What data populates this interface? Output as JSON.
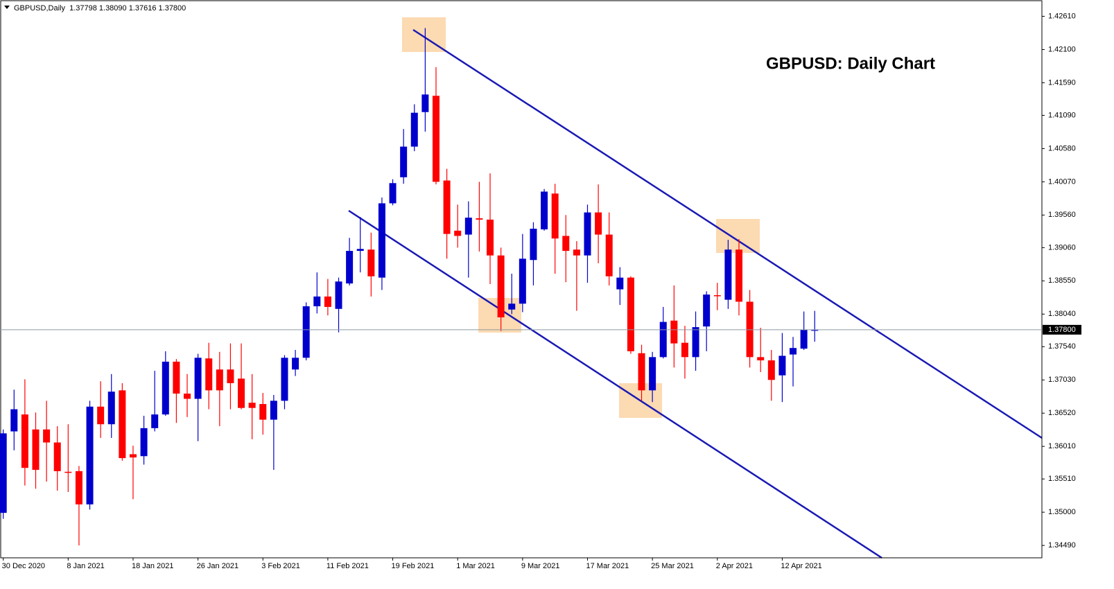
{
  "chart_data": {
    "type": "candlestick",
    "title": "GBPUSD: Daily Chart",
    "info": "GBPUSD,Daily  1.37798 1.38090 1.37616 1.37800",
    "categories": [
      "30 Dec 2020",
      null,
      null,
      null,
      null,
      null,
      "8 Jan 2021",
      null,
      null,
      null,
      null,
      null,
      "18 Jan 2021",
      null,
      null,
      null,
      null,
      null,
      "26 Jan 2021",
      null,
      null,
      null,
      null,
      null,
      "3 Feb 2021",
      null,
      null,
      null,
      null,
      null,
      "11 Feb 2021",
      null,
      null,
      null,
      null,
      null,
      "19 Feb 2021",
      null,
      null,
      null,
      null,
      null,
      "1 Mar 2021",
      null,
      null,
      null,
      null,
      null,
      "9 Mar 2021",
      null,
      null,
      null,
      null,
      null,
      "17 Mar 2021",
      null,
      null,
      null,
      null,
      null,
      "25 Mar 2021",
      null,
      null,
      null,
      null,
      null,
      "2 Apr 2021",
      null,
      null,
      null,
      null,
      null,
      "12 Apr 2021",
      null,
      null,
      null
    ],
    "open": [
      1.3499,
      1.3624,
      1.365,
      1.3627,
      1.3627,
      1.3607,
      1.3562,
      1.3563,
      1.3512,
      1.3662,
      1.3635,
      1.3687,
      1.3589,
      1.3586,
      1.3629,
      1.365,
      1.3731,
      1.3682,
      1.3674,
      1.3736,
      1.3719,
      1.3719,
      1.3705,
      1.3668,
      1.3666,
      1.3642,
      1.3671,
      1.3719,
      1.3737,
      1.3816,
      1.3831,
      1.3812,
      1.3851,
      1.3901,
      1.3903,
      1.386,
      1.3974,
      1.4014,
      1.4061,
      1.4114,
      1.4139,
      1.4009,
      1.3932,
      1.3926,
      1.3951,
      1.3949,
      1.3894,
      1.3811,
      1.382,
      1.3887,
      1.3934,
      1.3989,
      1.3924,
      1.3903,
      1.3894,
      1.396,
      1.3926,
      1.3842,
      1.386,
      1.3744,
      1.3687,
      1.3738,
      1.3794,
      1.376,
      1.3738,
      1.3785,
      1.3833,
      1.3826,
      1.3903,
      1.3823,
      1.3738,
      1.3733,
      1.371,
      1.3742,
      1.3751,
      1.37798
    ],
    "high": [
      1.3627,
      1.3688,
      1.3704,
      1.3653,
      1.3671,
      1.3632,
      1.3635,
      1.3571,
      1.3671,
      1.3701,
      1.3712,
      1.3698,
      1.3602,
      1.3648,
      1.3717,
      1.3747,
      1.3735,
      1.3712,
      1.3743,
      1.376,
      1.3746,
      1.3759,
      1.3759,
      1.3712,
      1.3683,
      1.368,
      1.3741,
      1.3749,
      1.3822,
      1.3868,
      1.3858,
      1.386,
      1.3921,
      1.3953,
      1.3929,
      1.3983,
      1.4011,
      1.4088,
      1.4126,
      1.4243,
      1.4183,
      1.4027,
      1.3972,
      1.3977,
      1.4007,
      1.402,
      1.3906,
      1.3866,
      1.3927,
      1.3945,
      1.3996,
      1.4004,
      1.3956,
      1.3916,
      1.3972,
      1.4003,
      1.396,
      1.3876,
      1.3862,
      1.3757,
      1.3746,
      1.3815,
      1.3848,
      1.3786,
      1.3808,
      1.3839,
      1.3852,
      1.3918,
      1.3919,
      1.3841,
      1.3783,
      1.3749,
      1.3775,
      1.3769,
      1.3808,
      1.3809
    ],
    "low": [
      1.349,
      1.3595,
      1.3541,
      1.3536,
      1.3547,
      1.3533,
      1.3531,
      1.3449,
      1.3504,
      1.3614,
      1.3614,
      1.3579,
      1.352,
      1.3573,
      1.3624,
      1.3648,
      1.3637,
      1.3646,
      1.3609,
      1.3658,
      1.3632,
      1.3658,
      1.3658,
      1.3612,
      1.3619,
      1.3565,
      1.3658,
      1.3709,
      1.3733,
      1.3805,
      1.3802,
      1.3776,
      1.3848,
      1.3868,
      1.3831,
      1.3841,
      1.3971,
      1.4004,
      1.4054,
      1.4084,
      1.4003,
      1.3889,
      1.3906,
      1.386,
      1.39,
      1.385,
      1.3778,
      1.3804,
      1.3807,
      1.3848,
      1.3932,
      1.3866,
      1.3853,
      1.3809,
      1.3852,
      1.3882,
      1.3848,
      1.3818,
      1.3743,
      1.3671,
      1.3669,
      1.3736,
      1.3722,
      1.3705,
      1.3717,
      1.3747,
      1.381,
      1.3812,
      1.3802,
      1.3722,
      1.3715,
      1.3671,
      1.3669,
      1.3693,
      1.3749,
      1.37616
    ],
    "close": [
      1.3621,
      1.3658,
      1.3568,
      1.3565,
      1.3607,
      1.3563,
      1.3561,
      1.3512,
      1.3662,
      1.3635,
      1.3685,
      1.3583,
      1.3584,
      1.3629,
      1.365,
      1.3731,
      1.3682,
      1.3674,
      1.3737,
      1.3687,
      1.3687,
      1.3698,
      1.366,
      1.366,
      1.3642,
      1.3671,
      1.3737,
      1.3737,
      1.3816,
      1.3831,
      1.3815,
      1.3854,
      1.3901,
      1.3904,
      1.3862,
      1.3974,
      1.4005,
      1.4061,
      1.4113,
      1.4141,
      1.4007,
      1.3927,
      1.3924,
      1.3952,
      1.3949,
      1.3894,
      1.3799,
      1.382,
      1.3889,
      1.3935,
      1.3992,
      1.392,
      1.3901,
      1.3894,
      1.396,
      1.3926,
      1.3862,
      1.386,
      1.3747,
      1.3687,
      1.3738,
      1.3792,
      1.3759,
      1.3738,
      1.3784,
      1.3834,
      1.3832,
      1.3903,
      1.3823,
      1.3738,
      1.3733,
      1.3703,
      1.374,
      1.3752,
      1.378,
      1.378
    ],
    "up_color": "#0000cd",
    "down_color": "#ff0000",
    "xlim": [
      -0.3,
      96
    ],
    "ylim": [
      1.343,
      1.4286
    ],
    "yticks": [
      {
        "value": 1.4261,
        "label": "1.42610"
      },
      {
        "value": 1.421,
        "label": "1.42100"
      },
      {
        "value": 1.4159,
        "label": "1.41590"
      },
      {
        "value": 1.4109,
        "label": "1.41090"
      },
      {
        "value": 1.4058,
        "label": "1.40580"
      },
      {
        "value": 1.4007,
        "label": "1.40070"
      },
      {
        "value": 1.3956,
        "label": "1.39560"
      },
      {
        "value": 1.3906,
        "label": "1.39060"
      },
      {
        "value": 1.3855,
        "label": "1.38550"
      },
      {
        "value": 1.3804,
        "label": "1.38040"
      },
      {
        "value": 1.3754,
        "label": "1.37540"
      },
      {
        "value": 1.3703,
        "label": "1.37030"
      },
      {
        "value": 1.3652,
        "label": "1.36520"
      },
      {
        "value": 1.3601,
        "label": "1.36010"
      },
      {
        "value": 1.3551,
        "label": "1.35510"
      },
      {
        "value": 1.35,
        "label": "1.35000"
      },
      {
        "value": 1.3449,
        "label": "1.34490"
      }
    ],
    "current_price": {
      "value": 1.378,
      "label": "1.37800"
    },
    "grid": false
  }
}
